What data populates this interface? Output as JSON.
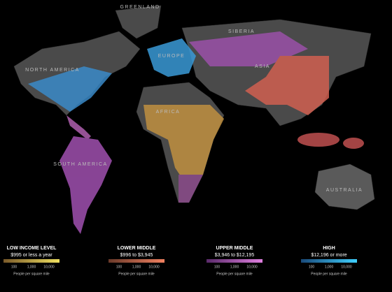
{
  "map_labels": [
    "GREENLAND",
    "SIBERIA",
    "NORTH AMERICA",
    "EUROPE",
    "ASIA",
    "AFRICA",
    "SOUTH AMERICA",
    "AUSTRALIA"
  ],
  "legend": [
    {
      "title": "LOW INCOME LEVEL",
      "range": "$995 or less a year",
      "ticks": [
        "100",
        "1,000",
        "10,000"
      ],
      "unit": "People per square mile"
    },
    {
      "title": "LOWER MIDDLE",
      "range": "$996 to $3,945",
      "ticks": [
        "100",
        "1,000",
        "10,000"
      ],
      "unit": "People per square mile"
    },
    {
      "title": "UPPER MIDDLE",
      "range": "$3,946 to $12,195",
      "ticks": [
        "100",
        "1,000",
        "10,000"
      ],
      "unit": "People per square mile"
    },
    {
      "title": "HIGH",
      "range": "$12,196 or more",
      "ticks": [
        "100",
        "1,000",
        "10,000"
      ],
      "unit": "People per square mile"
    }
  ]
}
